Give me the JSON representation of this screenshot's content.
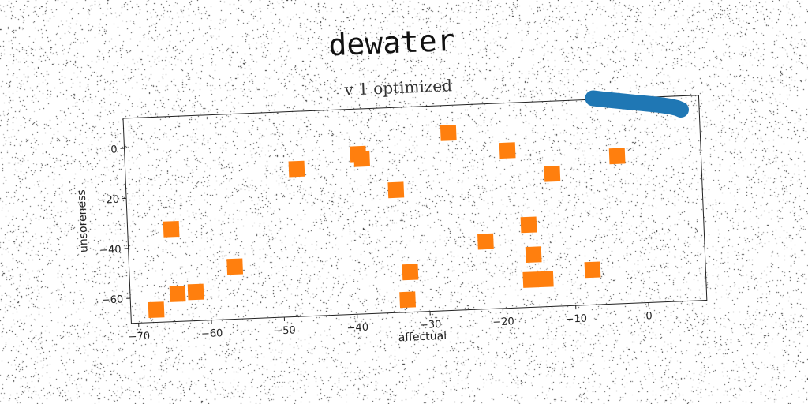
{
  "chart_data": {
    "type": "scatter",
    "title": "dewater",
    "subtitle": "v 1 optimized",
    "xlabel": "affectual",
    "ylabel": "unsoreness",
    "xlim": [
      -71,
      8
    ],
    "ylim": [
      -70,
      12
    ],
    "xticks": [
      -70,
      -60,
      -50,
      -40,
      -30,
      -20,
      -10,
      0
    ],
    "yticks": [
      0,
      -20,
      -40,
      -60
    ],
    "grid": false,
    "series": [
      {
        "color": "#1f77b4",
        "marker": "line",
        "points": [
          [
            -6.5,
            12.5
          ],
          [
            -5.0,
            11.8
          ],
          [
            -3.5,
            11.2
          ],
          [
            -2.0,
            10.6
          ],
          [
            -0.5,
            10.0
          ],
          [
            1.0,
            9.4
          ],
          [
            2.5,
            8.8
          ],
          [
            4.0,
            8.0
          ],
          [
            5.0,
            7.2
          ],
          [
            5.5,
            6.5
          ]
        ]
      },
      {
        "color": "#ff7f0e",
        "marker": "square",
        "points": [
          [
            -26.5,
            1
          ],
          [
            -39,
            -6
          ],
          [
            -38.5,
            -8
          ],
          [
            -18.5,
            -7
          ],
          [
            -47.5,
            -11
          ],
          [
            -3.5,
            -11
          ],
          [
            -34,
            -21
          ],
          [
            -12.5,
            -17
          ],
          [
            -65,
            -33
          ],
          [
            -16,
            -37
          ],
          [
            -22,
            -43
          ],
          [
            -15.5,
            -49
          ],
          [
            -56.5,
            -49
          ],
          [
            -32.5,
            -54
          ],
          [
            -7.5,
            -56
          ],
          [
            -64.5,
            -59
          ],
          [
            -62,
            -58.5
          ],
          [
            -16,
            -59
          ],
          [
            -14,
            -59
          ],
          [
            -67.5,
            -65
          ],
          [
            -33,
            -65
          ]
        ]
      }
    ]
  }
}
